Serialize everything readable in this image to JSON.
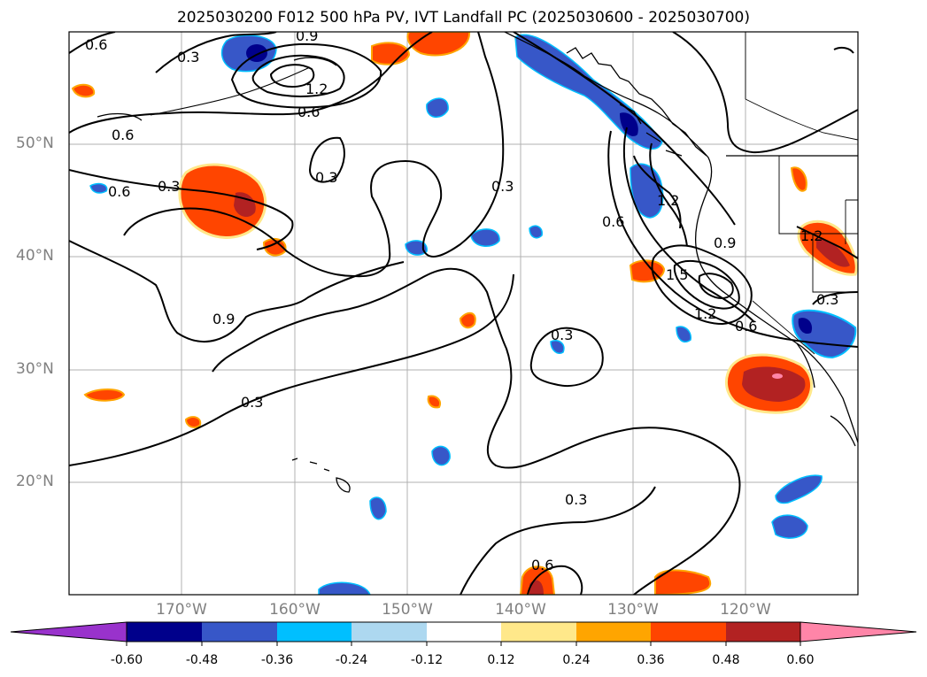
{
  "title": "2025030200 F012 500 hPa PV, IVT Landfall PC (2025030600 - 2025030700)",
  "lat_labels": [
    "50°N",
    "40°N",
    "30°N",
    "20°N"
  ],
  "lon_labels": [
    "170°W",
    "160°W",
    "150°W",
    "140°W",
    "130°W",
    "120°W"
  ],
  "colorbar": {
    "ticks": [
      "-0.60",
      "-0.48",
      "-0.36",
      "-0.24",
      "-0.12",
      "0.12",
      "0.24",
      "0.36",
      "0.48",
      "0.60"
    ],
    "colors": [
      "#9932cc",
      "#00008b",
      "#3757c8",
      "#00bfff",
      "#add8f0",
      "#ffffff",
      "#ffe88a",
      "#ffa500",
      "#ff4500",
      "#b22222",
      "#ff85a8"
    ]
  },
  "contour_labels": [
    "0.6",
    "0.3",
    "0.9",
    "1.2",
    "0.6",
    "0.6",
    "0.3",
    "0.3",
    "0.6",
    "0.3",
    "0.9",
    "0.3",
    "1.2",
    "0.6",
    "1.2",
    "0.9",
    "1.5",
    "1.2",
    "0.3",
    "0.3",
    "0.3",
    "0.6",
    "0.6"
  ],
  "colors": {
    "land": "#000000",
    "grid": "#b0b0b0",
    "contour": "#000000"
  }
}
